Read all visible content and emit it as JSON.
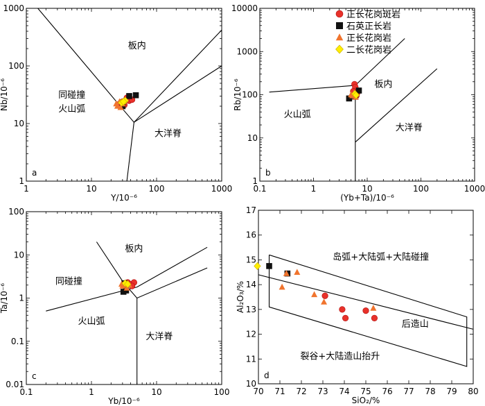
{
  "colors": {
    "red": "#e8312a",
    "black": "#111111",
    "orange": "#f0742e",
    "yellow": "#ffee00",
    "axis": "#000000"
  },
  "legend": {
    "placement": "top-right of panel b",
    "entries": [
      {
        "label": "正长花岗斑岩",
        "marker": "circle",
        "color": "#e8312a"
      },
      {
        "label": "石英正长岩",
        "marker": "square",
        "color": "#111111"
      },
      {
        "label": "正长花岗岩",
        "marker": "triangle",
        "color": "#f0742e"
      },
      {
        "label": "二长花岗岩",
        "marker": "diamond",
        "color": "#ffee00"
      }
    ]
  },
  "chart_data": [
    {
      "panel": "a",
      "type": "scatter",
      "xscale": "log",
      "yscale": "log",
      "xlim": [
        1,
        1000
      ],
      "ylim": [
        1,
        1000
      ],
      "xticks": [
        "1",
        "10",
        "100",
        "1000"
      ],
      "yticks": [
        "1",
        "10",
        "100",
        "1000"
      ],
      "xlabel": "Y/10⁻⁶",
      "ylabel": "Nb/10⁻⁶",
      "lines": [
        [
          [
            1.5,
            1000
          ],
          [
            30,
            18
          ],
          [
            45,
            10.5
          ],
          [
            1000,
            420
          ]
        ],
        [
          [
            45,
            10.5
          ],
          [
            1000,
            100
          ]
        ],
        [
          [
            45,
            10.5
          ],
          [
            35,
            1
          ]
        ]
      ],
      "fields": [
        {
          "label": "板内",
          "x": 50,
          "y": 200
        },
        {
          "label": "同碰撞",
          "x": 5,
          "y": 28
        },
        {
          "label": "火山弧",
          "x": 5,
          "y": 16
        },
        {
          "label": "大洋脊",
          "x": 150,
          "y": 6
        }
      ],
      "series": [
        {
          "name": "正长花岗斑岩",
          "points": [
            [
              27,
              22
            ],
            [
              30,
              24
            ],
            [
              35,
              28
            ],
            [
              38,
              25
            ],
            [
              42,
              26
            ],
            [
              32,
              21
            ]
          ]
        },
        {
          "name": "石英正长岩",
          "points": [
            [
              38,
              30
            ],
            [
              48,
              31
            ],
            [
              30,
              20
            ]
          ]
        },
        {
          "name": "正长花岗岩",
          "points": [
            [
              25,
              20
            ],
            [
              27,
              24
            ],
            [
              30,
              22
            ],
            [
              24,
              22
            ],
            [
              28,
              19
            ]
          ]
        },
        {
          "name": "二长花岗岩",
          "points": [
            [
              29,
              23
            ],
            [
              33,
              25
            ],
            [
              31,
              24
            ]
          ]
        }
      ]
    },
    {
      "panel": "b",
      "type": "scatter",
      "xscale": "log",
      "yscale": "log",
      "xlim": [
        0.1,
        1000
      ],
      "ylim": [
        1,
        10000
      ],
      "xticks": [
        "0.1",
        "1",
        "10",
        "100",
        "1000"
      ],
      "yticks": [
        "1",
        "10",
        "100",
        "1000",
        "10000"
      ],
      "xlabel": "(Yb+Ta)/10⁻⁶",
      "ylabel": "Rb/10⁻⁶",
      "lines": [
        [
          [
            0.15,
            115
          ],
          [
            6,
            165
          ],
          [
            50,
            2000
          ]
        ],
        [
          [
            6,
            165
          ],
          [
            6,
            1
          ]
        ],
        [
          [
            6,
            8
          ],
          [
            200,
            400
          ]
        ]
      ],
      "fields": [
        {
          "label": "板内",
          "x": 20,
          "y": 150
        },
        {
          "label": "火山弧",
          "x": 0.5,
          "y": 30
        },
        {
          "label": "大洋脊",
          "x": 60,
          "y": 15
        }
      ],
      "series": [
        {
          "name": "正长花岗斑岩",
          "points": [
            [
              5.8,
              175
            ],
            [
              6.0,
              150
            ],
            [
              5.5,
              120
            ],
            [
              6.5,
              110
            ],
            [
              6.3,
              95
            ]
          ]
        },
        {
          "name": "石英正长岩",
          "points": [
            [
              4.6,
              82
            ],
            [
              7.0,
              125
            ],
            [
              6.0,
              90
            ]
          ]
        },
        {
          "name": "正长花岗岩",
          "points": [
            [
              5.3,
              95
            ],
            [
              5.7,
              110
            ],
            [
              5.0,
              100
            ],
            [
              6.1,
              88
            ]
          ]
        },
        {
          "name": "二长花岗岩",
          "points": [
            [
              5.9,
              105
            ],
            [
              6.2,
              98
            ]
          ]
        }
      ]
    },
    {
      "panel": "c",
      "type": "scatter",
      "xscale": "log",
      "yscale": "log",
      "xlim": [
        0.1,
        100
      ],
      "ylim": [
        0.01,
        100
      ],
      "xticks": [
        "0.1",
        "1",
        "10",
        "100"
      ],
      "yticks": [
        "0.01",
        "0.1",
        "1",
        "10",
        "100"
      ],
      "xlabel": "Yb/10⁻⁶",
      "ylabel": "Ta/10⁻⁶",
      "lines": [
        [
          [
            0.2,
            0.5
          ],
          [
            5,
            1.8
          ],
          [
            60,
            15
          ]
        ],
        [
          [
            1.2,
            20
          ],
          [
            3.1,
            2.3
          ],
          [
            5,
            1.0
          ],
          [
            60,
            5
          ]
        ],
        [
          [
            5,
            1.0
          ],
          [
            5,
            0.01
          ]
        ]
      ],
      "fields": [
        {
          "label": "板内",
          "x": 4.5,
          "y": 12
        },
        {
          "label": "同碰撞",
          "x": 0.45,
          "y": 2.1
        },
        {
          "label": "火山弧",
          "x": 1.0,
          "y": 0.25
        },
        {
          "label": "大洋脊",
          "x": 11,
          "y": 0.11
        }
      ],
      "series": [
        {
          "name": "正长花岗斑岩",
          "points": [
            [
              3.6,
              2.3
            ],
            [
              4.0,
              2.1
            ],
            [
              4.5,
              2.3
            ],
            [
              3.3,
              2.0
            ],
            [
              4.2,
              1.9
            ]
          ]
        },
        {
          "name": "石英正长岩",
          "points": [
            [
              3.1,
              1.4
            ],
            [
              3.4,
              1.5
            ],
            [
              3.2,
              2.2
            ]
          ]
        },
        {
          "name": "正长花岗岩",
          "points": [
            [
              3.0,
              1.9
            ],
            [
              3.5,
              1.7
            ],
            [
              3.8,
              2.0
            ],
            [
              2.9,
              2.1
            ]
          ]
        },
        {
          "name": "二长花岗岩",
          "points": [
            [
              3.3,
              2.2
            ],
            [
              3.6,
              2.1
            ]
          ]
        }
      ]
    },
    {
      "panel": "d",
      "type": "scatter",
      "xscale": "linear",
      "yscale": "linear",
      "xlim": [
        70,
        80
      ],
      "ylim": [
        10,
        17
      ],
      "xticks": [
        "70",
        "71",
        "72",
        "73",
        "74",
        "75",
        "76",
        "77",
        "78",
        "79",
        "80"
      ],
      "yticks": [
        "10",
        "11",
        "12",
        "13",
        "14",
        "15",
        "16",
        "17"
      ],
      "xlabel": "SiO₂/%",
      "ylabel": "Al₂O₃/%",
      "lines": [
        [
          [
            70.5,
            15.2
          ],
          [
            79.7,
            12.7
          ],
          [
            79.7,
            10.7
          ],
          [
            70.5,
            13.1
          ],
          [
            70.5,
            15.2
          ]
        ],
        [
          [
            70,
            14.4
          ],
          [
            80,
            12.2
          ]
        ]
      ],
      "fields": [
        {
          "label": "岛弧+大陆弧+大陆碰撞",
          "x": 75.7,
          "y": 15.0
        },
        {
          "label": "后造山",
          "x": 77.3,
          "y": 12.3
        },
        {
          "label": "裂谷+大陆造山抬升",
          "x": 73.8,
          "y": 11.0
        }
      ],
      "series": [
        {
          "name": "正长花岗斑岩",
          "points": [
            [
              73.1,
              13.55
            ],
            [
              73.9,
              13.0
            ],
            [
              74.05,
              12.65
            ],
            [
              75.0,
              12.95
            ],
            [
              75.4,
              12.65
            ]
          ]
        },
        {
          "name": "石英正长岩",
          "points": [
            [
              70.5,
              14.75
            ],
            [
              71.35,
              14.45
            ]
          ]
        },
        {
          "name": "正长花岗岩",
          "points": [
            [
              71.1,
              13.9
            ],
            [
              71.3,
              14.45
            ],
            [
              71.8,
              14.5
            ],
            [
              72.6,
              13.6
            ],
            [
              73.05,
              13.3
            ],
            [
              75.35,
              13.05
            ]
          ]
        },
        {
          "name": "二长花岗岩",
          "points": [
            [
              69.95,
              14.75
            ]
          ]
        }
      ]
    }
  ]
}
